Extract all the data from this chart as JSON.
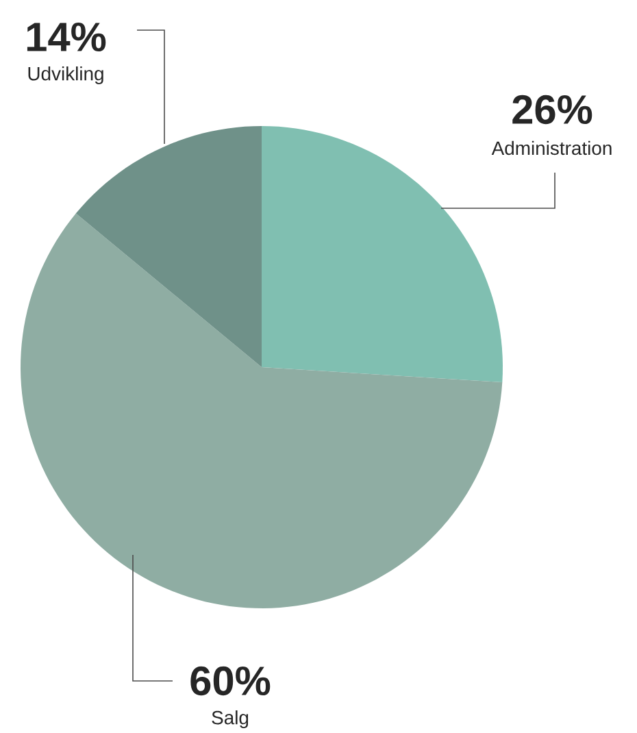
{
  "chart_data": {
    "type": "pie",
    "categories": [
      "Administration",
      "Salg",
      "Udvikling"
    ],
    "values": [
      26,
      60,
      14
    ],
    "value_labels": [
      "26%",
      "60%",
      "14%"
    ],
    "colors": [
      "#80bfb1",
      "#8fada3",
      "#6f9189"
    ]
  }
}
